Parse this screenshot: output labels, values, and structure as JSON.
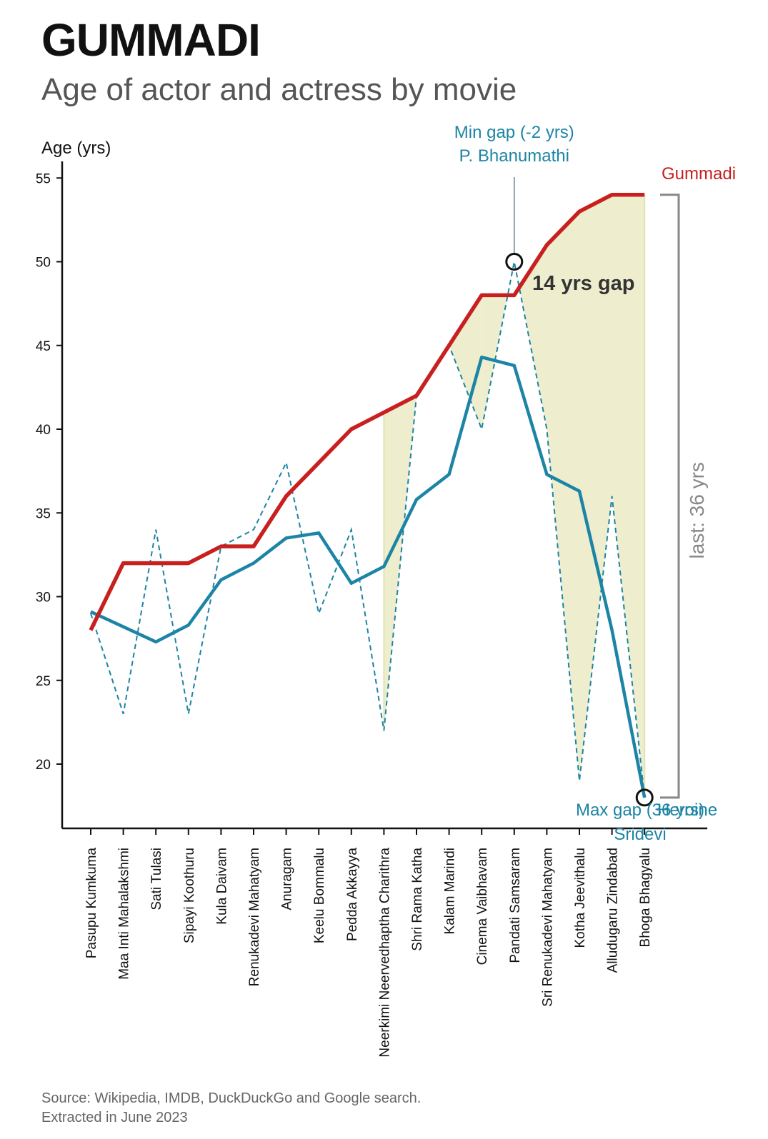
{
  "title": "GUMMADI",
  "subtitle": "Age of actor and actress by movie",
  "source": {
    "line1": "Source: Wikipedia, IMDB, DuckDuckGo and Google search.",
    "line2": "Extracted in June 2023"
  },
  "colors": {
    "actor": "#c8201f",
    "heroine": "#1c84a5",
    "gap_fill": "#eeeecf",
    "bracket": "#888888",
    "gap_label": "#333333"
  },
  "chart_data": {
    "type": "line",
    "ylabel": "Age (yrs)",
    "ylim": [
      16.2,
      56.5
    ],
    "yticks": [
      20,
      25,
      30,
      35,
      40,
      45,
      50,
      55
    ],
    "categories": [
      "Pasupu Kumkuma",
      "Maa Inti Mahalakshmi",
      "Sati Tulasi",
      "Sipayi Koothuru",
      "Kula Daivam",
      "Renukadevi Mahatyam",
      "Anuragam",
      "Keelu Bommalu",
      "Pedda Akkayya",
      "Neerkimi Neervedhaptha Charithra",
      "Shri Rama Katha",
      "Kalam Marindi",
      "Cinema Vaibhavam",
      "Pandati Samsaram",
      "Sri Renukadevi Mahatyam",
      "Kotha Jeevithalu",
      "Alludugaru Zindabad",
      "Bhoga Bhagyalu"
    ],
    "series": [
      {
        "name": "Gummadi",
        "style": "solid",
        "values": [
          28,
          32,
          32,
          32,
          33,
          33,
          36,
          38,
          40,
          41,
          42,
          45,
          48,
          48,
          51,
          53,
          54,
          54
        ]
      },
      {
        "name": "Heroine",
        "style": "dashed",
        "values": [
          29,
          23,
          34,
          23,
          33,
          34,
          38,
          29,
          34,
          22,
          42,
          45,
          40,
          50,
          40,
          19,
          36,
          18
        ]
      },
      {
        "name": "",
        "style": "solid",
        "values": [
          29.1,
          28.2,
          27.3,
          28.3,
          31.0,
          32.0,
          33.5,
          33.8,
          30.8,
          31.8,
          35.8,
          37.3,
          44.3,
          43.8,
          37.3,
          36.3,
          28.0,
          18.0
        ]
      }
    ],
    "annotations": {
      "min_gap_line1": "Min gap (-2 yrs)",
      "min_gap_line2": "P. Bhanumathi",
      "max_gap_line1": "Max gap (36 yrs)",
      "max_gap_line2": "Sridevi",
      "gap_label": "14 yrs gap",
      "last_label": "last: 36 yrs",
      "actor_label": "Gummadi",
      "heroine_label": "Heroine"
    }
  }
}
